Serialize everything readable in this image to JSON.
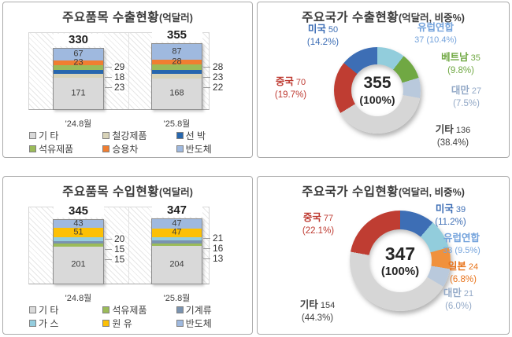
{
  "chart_data": [
    {
      "type": "bar",
      "stacked": true,
      "title": "주요품목 수출현황",
      "title_unit": "(억달러)",
      "categories": [
        "'24.8월",
        "'25.8월"
      ],
      "total_labels": [
        "330",
        "355"
      ],
      "ylim": [
        0,
        400
      ],
      "legend_position": "bottom",
      "series": [
        {
          "name": "기 타",
          "color": "#D9D9D9",
          "values": [
            171,
            168
          ],
          "inside": true
        },
        {
          "name": "철강제품",
          "color": "#D8D3B8",
          "values": [
            23,
            22
          ],
          "callout": true
        },
        {
          "name": "선 박",
          "color": "#2767AE",
          "values": [
            18,
            23
          ],
          "callout": true
        },
        {
          "name": "석유제품",
          "color": "#9BBB59",
          "values": [
            29,
            28
          ],
          "callout": true
        },
        {
          "name": "승용차",
          "color": "#F07E31",
          "values": [
            23,
            28
          ],
          "inside": true
        },
        {
          "name": "반도체",
          "color": "#9FB9DF",
          "values": [
            67,
            87
          ],
          "inside": true
        }
      ]
    },
    {
      "type": "pie",
      "subtype": "donut",
      "title": "주요국가 수출현황",
      "title_unit": "(억달러, 비중%)",
      "center": {
        "value": "355",
        "share": "(100%)"
      },
      "slices": [
        {
          "name": "유럽연합",
          "value": 37,
          "share": "(10.4%)",
          "color": "#92CDDC",
          "label_color": "#74A3DC",
          "name_on_own_line": true
        },
        {
          "name": "베트남",
          "value": 35,
          "share": "(9.8%)",
          "color": "#70A843",
          "label_color": "#70A843"
        },
        {
          "name": "대만",
          "value": 27,
          "share": "(7.5%)",
          "color": "#B9C9DC",
          "label_color": "#93A9C7"
        },
        {
          "name": "기타",
          "value": 136,
          "share": "(38.4%)",
          "color": "#D6D6D6",
          "label_color": "#404040"
        },
        {
          "name": "중국",
          "value": 70,
          "share": "(19.7%)",
          "color": "#BF3D32",
          "label_color": "#BE3A31"
        },
        {
          "name": "미국",
          "value": 50,
          "share": "(14.2%)",
          "color": "#3D6EB5",
          "label_color": "#3D6EB5"
        }
      ]
    },
    {
      "type": "bar",
      "stacked": true,
      "title": "주요품목 수입현황",
      "title_unit": "(억달러)",
      "categories": [
        "'24.8월",
        "'25.8월"
      ],
      "total_labels": [
        "345",
        "347"
      ],
      "ylim": [
        0,
        400
      ],
      "legend_position": "bottom",
      "series": [
        {
          "name": "기 타",
          "color": "#D9D9D9",
          "values": [
            201,
            204
          ],
          "inside": true
        },
        {
          "name": "석유제품",
          "color": "#9BBB59",
          "values": [
            15,
            13
          ],
          "callout": true
        },
        {
          "name": "기계류",
          "color": "#7A93B0",
          "values": [
            15,
            16
          ],
          "callout": true
        },
        {
          "name": "가 스",
          "color": "#94CDDE",
          "values": [
            20,
            21
          ],
          "callout": true
        },
        {
          "name": "원 유",
          "color": "#FCC006",
          "values": [
            51,
            47
          ],
          "inside": true
        },
        {
          "name": "반도체",
          "color": "#9FB9DF",
          "values": [
            43,
            47
          ],
          "inside": true
        }
      ]
    },
    {
      "type": "pie",
      "subtype": "donut",
      "title": "주요국가 수입현황",
      "title_unit": "(억달러, 비중%)",
      "center": {
        "value": "347",
        "share": "(100%)"
      },
      "slices": [
        {
          "name": "미국",
          "value": 39,
          "share": "(11.2%)",
          "color": "#3D6EB5",
          "label_color": "#3D6EB5"
        },
        {
          "name": "유럽연합",
          "value": 33,
          "share": "(9.5%)",
          "color": "#92CDDC",
          "label_color": "#74A3DC",
          "name_on_own_line": true
        },
        {
          "name": "일본",
          "value": 24,
          "share": "(6.8%)",
          "color": "#F0913C",
          "label_color": "#E8731A"
        },
        {
          "name": "대만",
          "value": 21,
          "share": "(6.0%)",
          "color": "#B9C9DC",
          "label_color": "#93A9C7"
        },
        {
          "name": "기타",
          "value": 154,
          "share": "(44.3%)",
          "color": "#D6D6D6",
          "label_color": "#404040"
        },
        {
          "name": "중국",
          "value": 77,
          "share": "(22.1%)",
          "color": "#BF3D32",
          "label_color": "#BE3A31"
        }
      ]
    }
  ]
}
